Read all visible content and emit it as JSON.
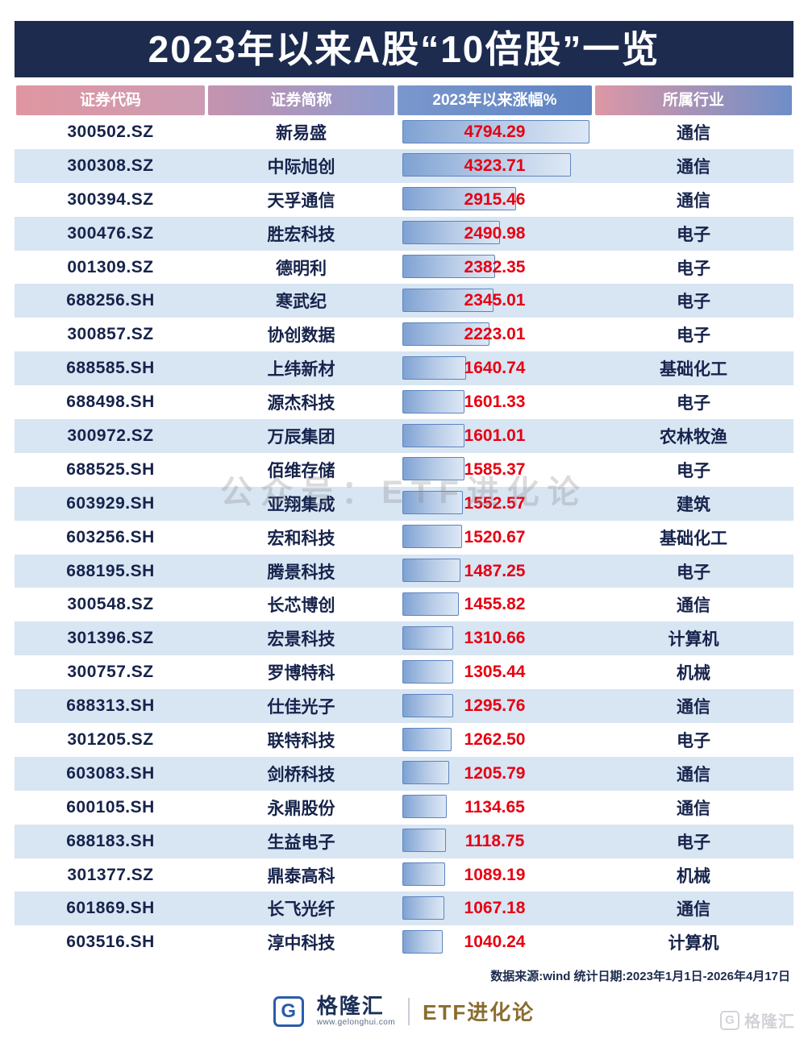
{
  "title": "2023年以来A股“10倍股”一览",
  "header": {
    "code": "证券代码",
    "name": "证券简称",
    "gain": "2023年以来涨幅%",
    "industry": "所属行业"
  },
  "rows": [
    {
      "code": "300502.SZ",
      "name": "新易盛",
      "gain": "4794.29",
      "industry": "通信"
    },
    {
      "code": "300308.SZ",
      "name": "中际旭创",
      "gain": "4323.71",
      "industry": "通信"
    },
    {
      "code": "300394.SZ",
      "name": "天孚通信",
      "gain": "2915.46",
      "industry": "通信"
    },
    {
      "code": "300476.SZ",
      "name": "胜宏科技",
      "gain": "2490.98",
      "industry": "电子"
    },
    {
      "code": "001309.SZ",
      "name": "德明利",
      "gain": "2382.35",
      "industry": "电子"
    },
    {
      "code": "688256.SH",
      "name": "寒武纪",
      "gain": "2345.01",
      "industry": "电子"
    },
    {
      "code": "300857.SZ",
      "name": "协创数据",
      "gain": "2223.01",
      "industry": "电子"
    },
    {
      "code": "688585.SH",
      "name": "上纬新材",
      "gain": "1640.74",
      "industry": "基础化工"
    },
    {
      "code": "688498.SH",
      "name": "源杰科技",
      "gain": "1601.33",
      "industry": "电子"
    },
    {
      "code": "300972.SZ",
      "name": "万辰集团",
      "gain": "1601.01",
      "industry": "农林牧渔"
    },
    {
      "code": "688525.SH",
      "name": "佰维存储",
      "gain": "1585.37",
      "industry": "电子"
    },
    {
      "code": "603929.SH",
      "name": "亚翔集成",
      "gain": "1552.57",
      "industry": "建筑"
    },
    {
      "code": "603256.SH",
      "name": "宏和科技",
      "gain": "1520.67",
      "industry": "基础化工"
    },
    {
      "code": "688195.SH",
      "name": "腾景科技",
      "gain": "1487.25",
      "industry": "电子"
    },
    {
      "code": "300548.SZ",
      "name": "长芯博创",
      "gain": "1455.82",
      "industry": "通信"
    },
    {
      "code": "301396.SZ",
      "name": "宏景科技",
      "gain": "1310.66",
      "industry": "计算机"
    },
    {
      "code": "300757.SZ",
      "name": "罗博特科",
      "gain": "1305.44",
      "industry": "机械"
    },
    {
      "code": "688313.SH",
      "name": "仕佳光子",
      "gain": "1295.76",
      "industry": "通信"
    },
    {
      "code": "301205.SZ",
      "name": "联特科技",
      "gain": "1262.50",
      "industry": "电子"
    },
    {
      "code": "603083.SH",
      "name": "剑桥科技",
      "gain": "1205.79",
      "industry": "通信"
    },
    {
      "code": "600105.SH",
      "name": "永鼎股份",
      "gain": "1134.65",
      "industry": "通信"
    },
    {
      "code": "688183.SH",
      "name": "生益电子",
      "gain": "1118.75",
      "industry": "电子"
    },
    {
      "code": "301377.SZ",
      "name": "鼎泰高科",
      "gain": "1089.19",
      "industry": "机械"
    },
    {
      "code": "601869.SH",
      "name": "长飞光纤",
      "gain": "1067.18",
      "industry": "通信"
    },
    {
      "code": "603516.SH",
      "name": "淳中科技",
      "gain": "1040.24",
      "industry": "计算机"
    }
  ],
  "center_watermark": "公众号：ETF进化论",
  "footer": {
    "source": "数据来源:wind 统计日期:2023年1月1日-2026年4月17日",
    "brand_logo_letter": "G",
    "brand_name": "格隆汇",
    "brand_url": "www.gelonghui.com",
    "brand_partner": "ETF进化论",
    "corner_watermark": "格隆汇"
  },
  "colors": {
    "title_bg": "#1d2b4f",
    "row_alt_bg": "#d8e5f3",
    "gain_value_red": "#e60012",
    "bar_border_blue": "#5d84c0",
    "brand_gold": "#8a6d2f"
  },
  "chart_data": {
    "type": "bar",
    "orientation": "horizontal",
    "title": "2023年以来A股“10倍股”一览",
    "xlabel": "2023年以来涨幅%",
    "ylabel": "证券简称",
    "xlim": [
      0,
      4794.29
    ],
    "categories": [
      "新易盛",
      "中际旭创",
      "天孚通信",
      "胜宏科技",
      "德明利",
      "寒武纪",
      "协创数据",
      "上纬新材",
      "源杰科技",
      "万辰集团",
      "佰维存储",
      "亚翔集成",
      "宏和科技",
      "腾景科技",
      "长芯博创",
      "宏景科技",
      "罗博特科",
      "仕佳光子",
      "联特科技",
      "剑桥科技",
      "永鼎股份",
      "生益电子",
      "鼎泰高科",
      "长飞光纤",
      "淳中科技"
    ],
    "values": [
      4794.29,
      4323.71,
      2915.46,
      2490.98,
      2382.35,
      2345.01,
      2223.01,
      1640.74,
      1601.33,
      1601.01,
      1585.37,
      1552.57,
      1520.67,
      1487.25,
      1455.82,
      1310.66,
      1305.44,
      1295.76,
      1262.5,
      1205.79,
      1134.65,
      1118.75,
      1089.19,
      1067.18,
      1040.24
    ],
    "legend": [],
    "grid": false
  }
}
